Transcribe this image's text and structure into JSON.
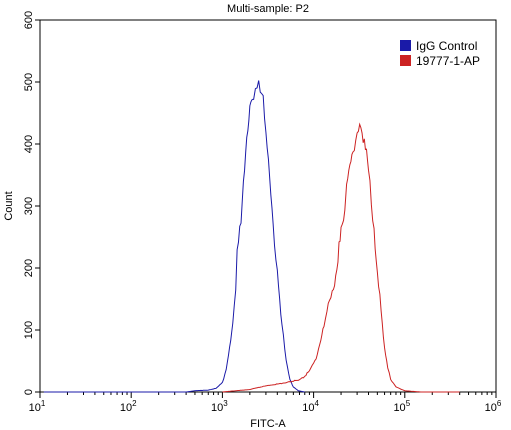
{
  "chart_data": {
    "type": "line",
    "title": "Multi-sample: P2",
    "xlabel": "FITC-A",
    "ylabel": "Count",
    "x_scale": "log",
    "xlim": [
      10,
      1000000
    ],
    "ylim": [
      0,
      600
    ],
    "x_major_ticks": [
      {
        "base": "10",
        "exp": "1",
        "value": 10
      },
      {
        "base": "10",
        "exp": "2",
        "value": 100
      },
      {
        "base": "10",
        "exp": "3",
        "value": 1000
      },
      {
        "base": "10",
        "exp": "4",
        "value": 10000
      },
      {
        "base": "10",
        "exp": "5",
        "value": 100000
      },
      {
        "base": "10",
        "exp": "6",
        "value": 1000000
      }
    ],
    "y_ticks": [
      0,
      100,
      200,
      300,
      400,
      500,
      600
    ],
    "grid": false,
    "legend_position": "top-right",
    "series": [
      {
        "name": "IgG Control",
        "color": "#1a1aa8",
        "points": [
          [
            11,
            0
          ],
          [
            100,
            0
          ],
          [
            200,
            0
          ],
          [
            400,
            0
          ],
          [
            500,
            2
          ],
          [
            700,
            3
          ],
          [
            850,
            6
          ],
          [
            1000,
            15
          ],
          [
            1100,
            35
          ],
          [
            1200,
            70
          ],
          [
            1300,
            110
          ],
          [
            1400,
            170
          ],
          [
            1450,
            230
          ],
          [
            1500,
            240
          ],
          [
            1600,
            280
          ],
          [
            1700,
            340
          ],
          [
            1800,
            390
          ],
          [
            1900,
            430
          ],
          [
            2000,
            460
          ],
          [
            2100,
            475
          ],
          [
            2200,
            480
          ],
          [
            2300,
            490
          ],
          [
            2400,
            500
          ],
          [
            2500,
            505
          ],
          [
            2600,
            490
          ],
          [
            2700,
            480
          ],
          [
            2800,
            470
          ],
          [
            2900,
            450
          ],
          [
            3000,
            420
          ],
          [
            3300,
            350
          ],
          [
            3600,
            270
          ],
          [
            4000,
            190
          ],
          [
            4500,
            110
          ],
          [
            5000,
            50
          ],
          [
            5500,
            20
          ],
          [
            6000,
            8
          ],
          [
            6800,
            2
          ],
          [
            8000,
            0
          ]
        ]
      },
      {
        "name": "19777-1-AP",
        "color": "#cc2222",
        "points": [
          [
            1000,
            0
          ],
          [
            1400,
            2
          ],
          [
            2000,
            4
          ],
          [
            3000,
            10
          ],
          [
            5000,
            15
          ],
          [
            7000,
            20
          ],
          [
            8000,
            25
          ],
          [
            9000,
            35
          ],
          [
            10000,
            45
          ],
          [
            11000,
            60
          ],
          [
            12000,
            85
          ],
          [
            13000,
            110
          ],
          [
            14000,
            135
          ],
          [
            16000,
            160
          ],
          [
            18000,
            190
          ],
          [
            19000,
            240
          ],
          [
            20000,
            260
          ],
          [
            22000,
            290
          ],
          [
            23000,
            340
          ],
          [
            25000,
            370
          ],
          [
            27000,
            390
          ],
          [
            30000,
            410
          ],
          [
            32000,
            435
          ],
          [
            34000,
            415
          ],
          [
            36000,
            400
          ],
          [
            38000,
            385
          ],
          [
            40000,
            360
          ],
          [
            43000,
            310
          ],
          [
            46000,
            260
          ],
          [
            50000,
            200
          ],
          [
            55000,
            130
          ],
          [
            60000,
            70
          ],
          [
            65000,
            40
          ],
          [
            70000,
            20
          ],
          [
            80000,
            8
          ],
          [
            100000,
            2
          ],
          [
            150000,
            0
          ],
          [
            400000,
            0
          ]
        ]
      }
    ]
  }
}
